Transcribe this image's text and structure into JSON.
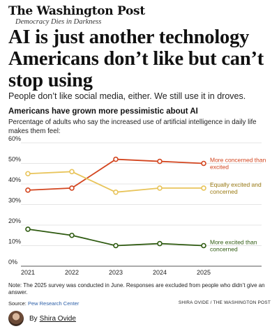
{
  "masthead": {
    "title": "The Washington Post",
    "tagline": "Democracy Dies in Darkness"
  },
  "article": {
    "headline": "AI is just another technology Americans don’t like but can’t stop using",
    "dek": "People don’t like social media, either. We still use it in droves."
  },
  "chart_data": {
    "type": "line",
    "title": "Americans have grown more pessimistic about AI",
    "subtitle": "Percentage of adults who say the increased use of artificial intelligence in daily life makes them feel:",
    "x": [
      "2021",
      "2022",
      "2023",
      "2024",
      "2025"
    ],
    "ylim": [
      0,
      60
    ],
    "yticks": [
      "0%",
      "10%",
      "20%",
      "30%",
      "40%",
      "50%",
      "60%"
    ],
    "grid": true,
    "series": [
      {
        "name": "More concerned than excited",
        "values": [
          37,
          38,
          52,
          51,
          50
        ],
        "color": "#d3451f"
      },
      {
        "name": "Equally excited and concerned",
        "values": [
          45,
          46,
          36,
          38,
          38
        ],
        "color": "#e8c45a",
        "label_color": "#9a7a12"
      },
      {
        "name": "More excited than concerned",
        "values": [
          18,
          15,
          10,
          11,
          10
        ],
        "color": "#2e5a10"
      }
    ]
  },
  "note": "Note: The 2025 survey was conducted in June. Responses are excluded from people who didn’t give an answer.",
  "source": {
    "label": "Source:",
    "name": "Pew Research Center"
  },
  "credit": "SHIRA OVIDE / THE WASHINGTON POST",
  "byline": {
    "prefix": "By",
    "author": "Shira Ovide"
  }
}
